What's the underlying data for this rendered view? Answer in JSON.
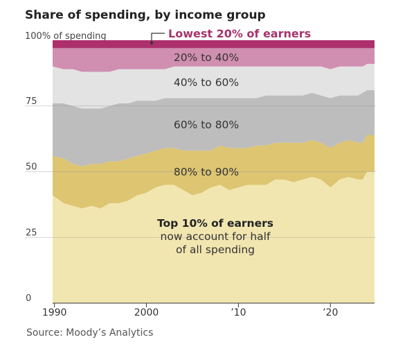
{
  "chart_data": {
    "type": "area",
    "stacked": true,
    "title": "Share of spending, by income group",
    "ylabel": "100% of spending",
    "ylim": [
      0,
      100
    ],
    "yticks": [
      "0",
      "25",
      "50",
      "75"
    ],
    "xlim": [
      1989.8,
      2024.8
    ],
    "xticks": [
      "1990",
      "2000",
      "’10",
      "’20"
    ],
    "xtick_values": [
      1990,
      2000,
      2010,
      2020
    ],
    "grid": true,
    "x": [
      1989.8,
      1991,
      1992,
      1993,
      1994,
      1995,
      1996,
      1997,
      1998,
      1999,
      2000,
      2001,
      2002,
      2003,
      2004,
      2005,
      2006,
      2007,
      2008,
      2009,
      2010,
      2011,
      2012,
      2013,
      2014,
      2015,
      2016,
      2017,
      2018,
      2019,
      2020,
      2021,
      2022,
      2023,
      2023.5,
      2024,
      2024.8
    ],
    "boundaries": [
      {
        "name": "Top 10% of earners",
        "values": [
          41,
          38,
          37,
          36,
          37,
          36,
          38,
          38,
          39,
          41,
          42,
          44,
          45,
          45,
          43,
          41,
          42,
          44,
          45,
          43,
          44,
          45,
          45,
          45,
          47,
          47,
          46,
          47,
          48,
          47,
          44,
          47,
          48,
          47,
          47,
          50,
          50
        ]
      },
      {
        "name": "80% to 90%",
        "values": [
          56,
          55,
          53,
          52,
          53,
          53,
          54,
          54,
          55,
          56,
          57,
          58,
          59,
          59,
          58,
          58,
          58,
          58,
          60,
          59,
          59,
          59,
          60,
          60,
          61,
          61,
          61,
          61,
          62,
          61,
          59,
          61,
          62,
          61,
          61,
          64,
          64
        ]
      },
      {
        "name": "60% to 80%",
        "values": [
          76,
          76,
          75,
          74,
          74,
          74,
          75,
          76,
          76,
          77,
          77,
          77,
          78,
          78,
          78,
          78,
          78,
          78,
          78,
          78,
          78,
          78,
          78,
          79,
          79,
          79,
          79,
          79,
          80,
          79,
          78,
          79,
          79,
          79,
          80,
          81,
          81
        ]
      },
      {
        "name": "40% to 60%",
        "values": [
          90,
          89,
          89,
          88,
          88,
          88,
          88,
          89,
          89,
          89,
          89,
          89,
          89,
          90,
          90,
          90,
          90,
          90,
          90,
          90,
          90,
          90,
          90,
          90,
          90,
          90,
          90,
          90,
          90,
          90,
          89,
          90,
          90,
          90,
          90,
          91,
          91
        ]
      },
      {
        "name": "20% to 40%",
        "values": [
          97,
          97,
          97,
          97,
          97,
          97,
          97,
          97,
          97,
          97,
          97,
          97,
          97,
          97,
          97,
          97,
          97,
          97,
          97,
          97,
          97,
          97,
          97,
          97,
          97,
          97,
          97,
          97,
          97,
          97,
          97,
          97,
          97,
          97,
          97,
          97,
          97
        ]
      },
      {
        "name": "Lowest 20% of earners",
        "values": [
          100,
          100,
          100,
          100,
          100,
          100,
          100,
          100,
          100,
          100,
          100,
          100,
          100,
          100,
          100,
          100,
          100,
          100,
          100,
          100,
          100,
          100,
          100,
          100,
          100,
          100,
          100,
          100,
          100,
          100,
          100,
          100,
          100,
          100,
          100,
          100,
          100
        ]
      }
    ],
    "band_colors": [
      "#f2e6b0",
      "#ddc572",
      "#bdbdbd",
      "#e3e3e3",
      "#d08fb0",
      "#ad2f6c"
    ],
    "band_labels": [
      "80% to 90%",
      "60% to 80%",
      "40% to 60%",
      "20% to 40%"
    ],
    "lowest_label": "Lowest 20% of earners",
    "lowest_color": "#a8336b",
    "annotation": {
      "bold": "Top 10% of earners",
      "line2": "now account for half",
      "line3": "of all spending"
    },
    "source": "Source: Moody’s Analytics"
  }
}
